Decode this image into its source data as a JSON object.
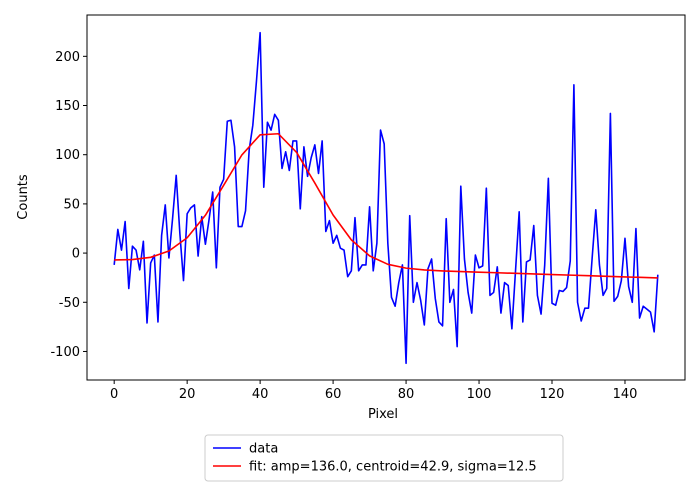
{
  "chart_data": {
    "type": "line",
    "xlabel": "Pixel",
    "ylabel": "Counts",
    "xlim": [
      -7.45,
      156.45
    ],
    "ylim": [
      -129,
      242
    ],
    "xticks": [
      0,
      20,
      40,
      60,
      80,
      100,
      120,
      140
    ],
    "yticks": [
      -100,
      -50,
      0,
      50,
      100,
      150,
      200
    ],
    "legend": "below",
    "series": [
      {
        "name": "data",
        "color": "#0000ff",
        "x": [
          0,
          1,
          2,
          3,
          4,
          5,
          6,
          7,
          8,
          9,
          10,
          11,
          12,
          13,
          14,
          15,
          16,
          17,
          18,
          19,
          20,
          21,
          22,
          23,
          24,
          25,
          26,
          27,
          28,
          29,
          30,
          31,
          32,
          33,
          34,
          35,
          36,
          37,
          38,
          39,
          40,
          41,
          42,
          43,
          44,
          45,
          46,
          47,
          48,
          49,
          50,
          51,
          52,
          53,
          54,
          55,
          56,
          57,
          58,
          59,
          60,
          61,
          62,
          63,
          64,
          65,
          66,
          67,
          68,
          69,
          70,
          71,
          72,
          73,
          74,
          75,
          76,
          77,
          78,
          79,
          80,
          81,
          82,
          83,
          84,
          85,
          86,
          87,
          88,
          89,
          90,
          91,
          92,
          93,
          94,
          95,
          96,
          97,
          98,
          99,
          100,
          101,
          102,
          103,
          104,
          105,
          106,
          107,
          108,
          109,
          110,
          111,
          112,
          113,
          114,
          115,
          116,
          117,
          118,
          119,
          120,
          121,
          122,
          123,
          124,
          125,
          126,
          127,
          128,
          129,
          130,
          131,
          132,
          133,
          134,
          135,
          136,
          137,
          138,
          139,
          140,
          141,
          142,
          143,
          144,
          145,
          146,
          147,
          148,
          149
        ],
        "values": [
          -12,
          24,
          3,
          32,
          -36,
          7,
          3,
          -17,
          12,
          -71,
          -10,
          -2,
          -70,
          18,
          49,
          -5,
          35,
          79,
          20,
          -28,
          40,
          46,
          49,
          -3,
          37,
          9,
          34,
          62,
          -15,
          67,
          75,
          134,
          135,
          108,
          27,
          27,
          43,
          105,
          130,
          175,
          224,
          67,
          133,
          125,
          141,
          135,
          86,
          103,
          84,
          114,
          114,
          45,
          108,
          78,
          97,
          110,
          81,
          114,
          22,
          33,
          10,
          18,
          5,
          3,
          -24,
          -18,
          36,
          -18,
          -12,
          -12,
          47,
          -18,
          10,
          125,
          111,
          10,
          -45,
          -54,
          -30,
          -12,
          -112,
          38,
          -50,
          -30,
          -48,
          -73,
          -16,
          -6,
          -46,
          -70,
          -74,
          35,
          -50,
          -37,
          -95,
          68,
          -6,
          -40,
          -61,
          -2,
          -15,
          -13,
          66,
          -43,
          -40,
          -14,
          -61,
          -30,
          -33,
          -77,
          -18,
          42,
          -70,
          -9,
          -7,
          28,
          -43,
          -62,
          -12,
          76,
          -51,
          -53,
          -38,
          -39,
          -35,
          -8,
          171,
          -50,
          -69,
          -56,
          -56,
          -5,
          44,
          -12,
          -43,
          -36,
          142,
          -49,
          -44,
          -28,
          15,
          -34,
          -50,
          25,
          -66,
          -54,
          -57,
          -60,
          -80,
          -22
        ]
      },
      {
        "name": "fit: amp=136.0, centroid=42.9, sigma=12.5",
        "color": "#ff0000",
        "x": [
          0,
          5,
          10,
          15,
          20,
          25,
          30,
          35,
          40,
          45,
          50,
          55,
          60,
          65,
          70,
          75,
          80,
          85,
          90,
          95,
          100,
          105,
          110,
          115,
          120,
          125,
          130,
          135,
          140,
          145,
          149
        ],
        "values": [
          -7.0,
          -6.6,
          -4.3,
          2.1,
          15.6,
          38.4,
          68.9,
          99.8,
          120.2,
          121.3,
          102.3,
          71.2,
          38.7,
          13.4,
          -2.8,
          -11.4,
          -15.3,
          -17.1,
          -18.1,
          -18.8,
          -19.4,
          -20.0,
          -20.6,
          -21.2,
          -21.8,
          -22.4,
          -23.0,
          -23.6,
          -24.2,
          -24.8,
          -25.3
        ]
      }
    ]
  }
}
